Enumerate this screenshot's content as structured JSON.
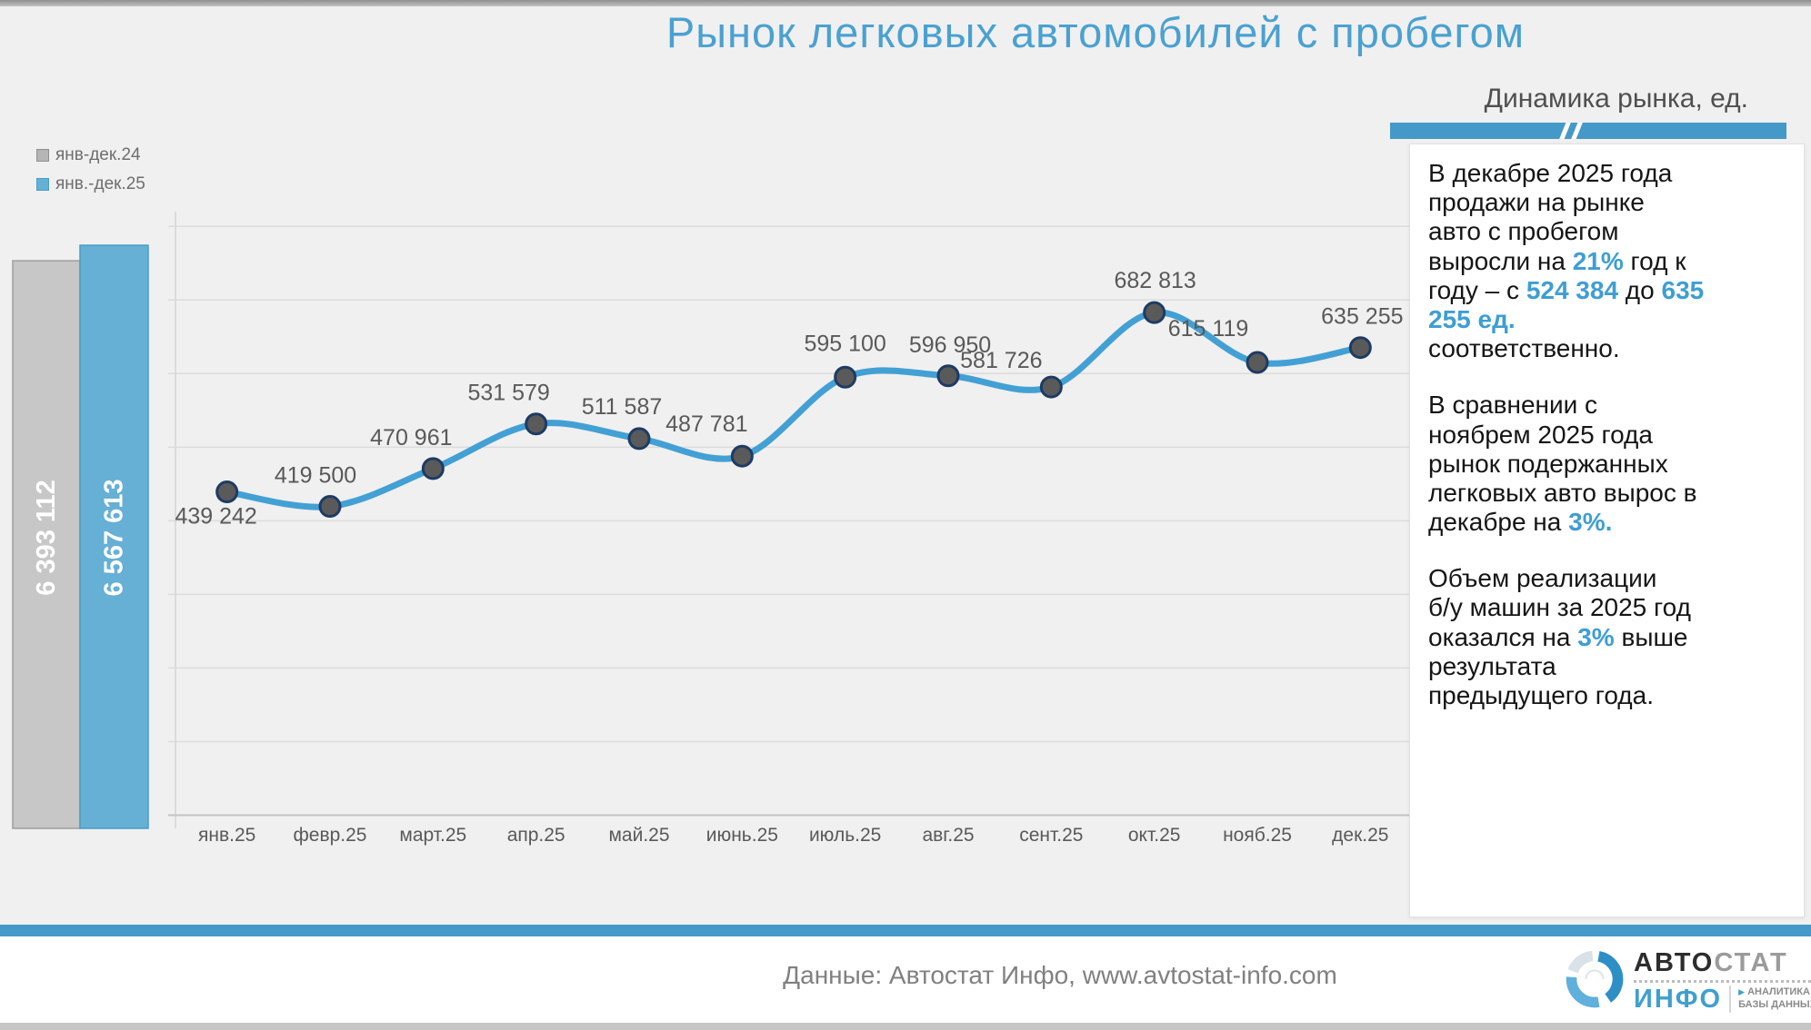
{
  "header": {
    "title": "Рынок легковых автомобилей с пробегом",
    "subtitle": "Динамика рынка, ед."
  },
  "legend": [
    {
      "label": "янв-дек.24",
      "color": "#b5b5b5"
    },
    {
      "label": "янв.-дек.25",
      "color": "#66afd5"
    }
  ],
  "chart_data": {
    "type": "line",
    "title": "Динамика рынка, ед.",
    "categories": [
      "янв.25",
      "февр.25",
      "март.25",
      "апр.25",
      "май.25",
      "июнь.25",
      "июль.25",
      "авг.25",
      "сент.25",
      "окт.25",
      "нояб.25",
      "дек.25"
    ],
    "series": [
      {
        "name": "янв.-дек.25",
        "type": "line",
        "values": [
          439242,
          419500,
          470961,
          531579,
          511587,
          487781,
          595100,
          596950,
          581726,
          682813,
          615119,
          635255
        ]
      }
    ],
    "annual_totals": {
      "type": "bar",
      "series": [
        {
          "name": "янв-дек.24",
          "value": 6393112
        },
        {
          "name": "янв.-дек.25",
          "value": 6567613
        }
      ]
    },
    "ylim": [
      0,
      820000
    ],
    "grid_step": 100000,
    "grid": true,
    "legend_position": "top-left",
    "data_labels": true
  },
  "insight_box": {
    "paragraphs": [
      [
        {
          "text": "В декабре 2025 года\nпродажи на рынке\nавто с пробегом\nвыросли на ",
          "highlight": false
        },
        {
          "text": "21%",
          "highlight": true
        },
        {
          "text": " год к\nгоду – с ",
          "highlight": false
        },
        {
          "text": "524 384",
          "highlight": true
        },
        {
          "text": " до ",
          "highlight": false
        },
        {
          "text": "635\n255 ед.",
          "highlight": true
        },
        {
          "text": "\nсоответственно.",
          "highlight": false
        }
      ],
      [
        {
          "text": "В сравнении с\nноябрем 2025 года\nрынок подержанных\nлегковых авто вырос в\nдекабре на ",
          "highlight": false
        },
        {
          "text": "3%.",
          "highlight": true
        }
      ],
      [
        {
          "text": "Объем реализации\nб/у машин за 2025 год\nоказался на ",
          "highlight": false
        },
        {
          "text": "3%",
          "highlight": true
        },
        {
          "text": " выше\nрезультата\nпредыдущего года.",
          "highlight": false
        }
      ]
    ]
  },
  "footer": {
    "source": "Данные: Автостат Инфо, www.avtostat-info.com"
  },
  "logo": {
    "brand_primary": "АВТО",
    "brand_secondary": "СТАТ",
    "brand_sub": "ИНФО",
    "tagline_line1": "АНАЛИТИКА",
    "tagline_line2": "БАЗЫ ДАННЫХ"
  },
  "colors": {
    "accent": "#4599c8",
    "title": "#4aa1d1",
    "line": "#43a0d4",
    "bar_2024_fill": "#c7c7c7",
    "bar_2024_stroke": "#9e9e9e",
    "bar_2025_fill": "#66afd5",
    "bar_2025_stroke": "#4a9cc9",
    "marker_fill": "#5a5a5a",
    "marker_stroke": "#1e3b63",
    "label_gray": "#595959",
    "highlight": "#3e9ed3"
  }
}
